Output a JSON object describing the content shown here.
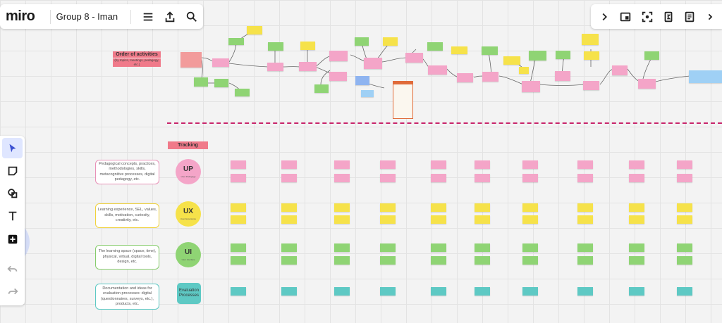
{
  "app": {
    "logo": "miro",
    "board_name": "Group 8 - Iman"
  },
  "toolbar_right": [
    "chevron-right-icon",
    "screen-share-icon",
    "focus-icon",
    "timer-icon",
    "notes-icon",
    "more-icon"
  ],
  "tools": [
    "select-tool",
    "sticky-note-tool",
    "shapes-tool",
    "text-tool",
    "add-more-tool",
    "undo",
    "redo"
  ],
  "order_title": "Order of activities",
  "order_subtitle": "(by topics, meetings, pedagogy, etc.)",
  "tracking_label": "Tracking",
  "rows": [
    {
      "label": "Pedagogical concepts, practices, methodologies, skills, metacognitive processes, digital pedagogy, etc.",
      "badge": "UP",
      "badge_sub": "User Pedagogy",
      "color": "#f4a5c8",
      "border": "#e892b8"
    },
    {
      "label": "Learning experience, SEL, values, skills, motivation, curiosity, creativity, etc.",
      "badge": "UX",
      "badge_sub": "User Experience",
      "color": "#f6e24a",
      "border": "#f0d23c"
    },
    {
      "label": "The learning space (space, time), physical, virtual, digital tools, design, etc.",
      "badge": "UI",
      "badge_sub": "User Interface",
      "color": "#8fd474",
      "border": "#86cc6c"
    },
    {
      "label": "Documentation and ideas for evaluation processes: digital (questionnaires, surveys, etc.), products, etc.",
      "badge": "Evaluation Processes",
      "badge_sub": "",
      "color": "#5ec9c4",
      "border": "#5ec9c4"
    }
  ],
  "colors": {
    "accent": "#4262ff",
    "divider": "#c8246a",
    "tracking": "#f07a8a"
  }
}
